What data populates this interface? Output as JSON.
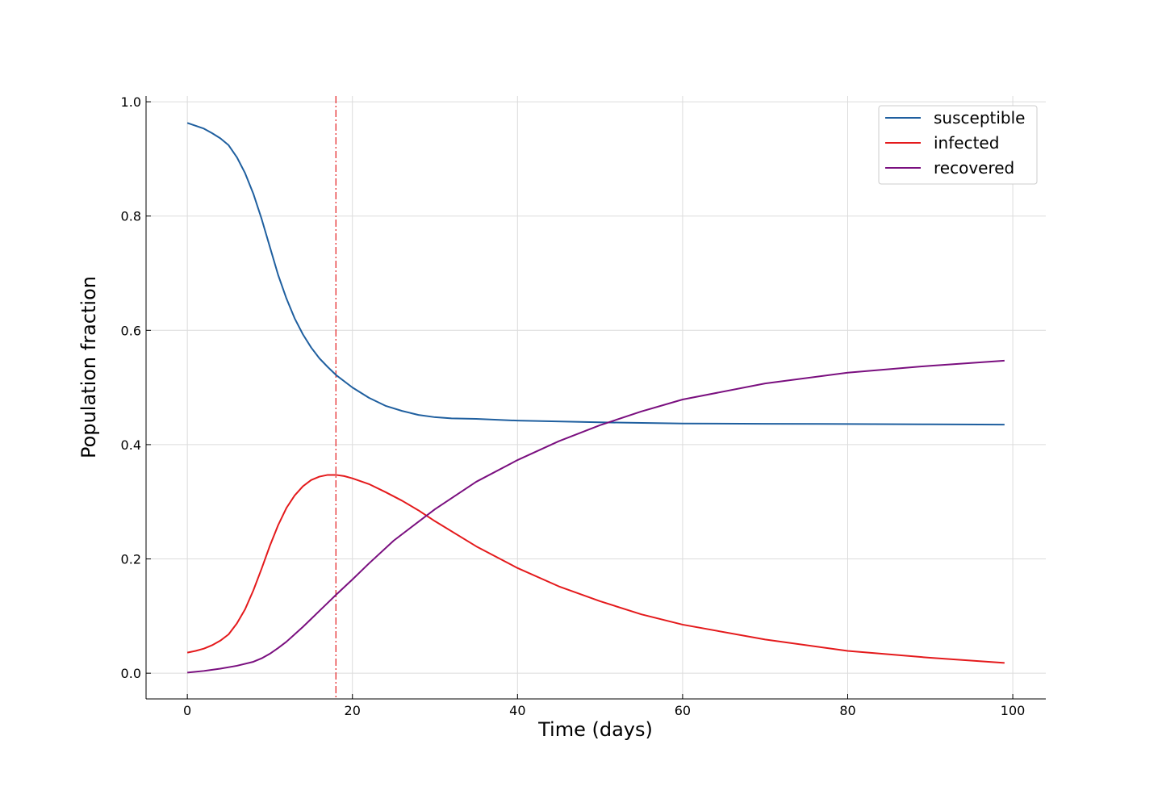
{
  "chart_data": {
    "type": "line",
    "title": "",
    "xlabel": "Time (days)",
    "ylabel": "Population fraction",
    "xlim": [
      -5,
      104
    ],
    "ylim": [
      -0.045,
      1.01
    ],
    "x_ticks": [
      0,
      20,
      40,
      60,
      80,
      100
    ],
    "x_tick_labels": [
      "0",
      "20",
      "40",
      "60",
      "80",
      "100"
    ],
    "y_ticks": [
      0.0,
      0.2,
      0.4,
      0.6,
      0.8,
      1.0
    ],
    "y_tick_labels": [
      "0.0",
      "0.2",
      "0.4",
      "0.6",
      "0.8",
      "1.0"
    ],
    "grid": true,
    "legend_position": "top-right",
    "vline": {
      "x": 18,
      "color": "#e41a1c",
      "style": "dash-dot"
    },
    "series": [
      {
        "name": "susceptible",
        "color": "#1f5f9f",
        "x": [
          0,
          2,
          3,
          4,
          5,
          6,
          7,
          8,
          9,
          10,
          11,
          12,
          13,
          14,
          15,
          16,
          17,
          18,
          20,
          22,
          24,
          26,
          28,
          30,
          32,
          35,
          40,
          50,
          60,
          70,
          80,
          90,
          99
        ],
        "y": [
          0.963,
          0.953,
          0.945,
          0.936,
          0.924,
          0.903,
          0.875,
          0.839,
          0.795,
          0.746,
          0.697,
          0.656,
          0.621,
          0.593,
          0.57,
          0.551,
          0.536,
          0.522,
          0.5,
          0.482,
          0.468,
          0.459,
          0.452,
          0.448,
          0.446,
          0.445,
          0.442,
          0.439,
          0.437,
          0.4365,
          0.436,
          0.4355,
          0.435
        ]
      },
      {
        "name": "infected",
        "color": "#e41a1c",
        "x": [
          0,
          1,
          2,
          3,
          4,
          5,
          6,
          7,
          8,
          9,
          10,
          11,
          12,
          13,
          14,
          15,
          16,
          17,
          18,
          19,
          20,
          22,
          24,
          26,
          28,
          30,
          35,
          40,
          45,
          50,
          55,
          60,
          70,
          80,
          90,
          99
        ],
        "y": [
          0.036,
          0.039,
          0.043,
          0.049,
          0.057,
          0.068,
          0.087,
          0.112,
          0.145,
          0.183,
          0.223,
          0.259,
          0.289,
          0.311,
          0.327,
          0.338,
          0.344,
          0.347,
          0.347,
          0.345,
          0.341,
          0.331,
          0.317,
          0.302,
          0.285,
          0.266,
          0.222,
          0.184,
          0.152,
          0.126,
          0.103,
          0.085,
          0.059,
          0.039,
          0.027,
          0.018
        ]
      },
      {
        "name": "recovered",
        "color": "#7a0f7f",
        "x": [
          0,
          2,
          4,
          6,
          8,
          9,
          10,
          11,
          12,
          13,
          14,
          15,
          16,
          17,
          18,
          20,
          22,
          25,
          30,
          35,
          40,
          45,
          50,
          55,
          60,
          70,
          80,
          90,
          99
        ],
        "y": [
          0.001,
          0.004,
          0.008,
          0.013,
          0.02,
          0.026,
          0.034,
          0.044,
          0.055,
          0.068,
          0.081,
          0.095,
          0.109,
          0.123,
          0.137,
          0.164,
          0.192,
          0.232,
          0.287,
          0.335,
          0.373,
          0.406,
          0.434,
          0.458,
          0.479,
          0.507,
          0.526,
          0.538,
          0.547
        ]
      }
    ]
  }
}
